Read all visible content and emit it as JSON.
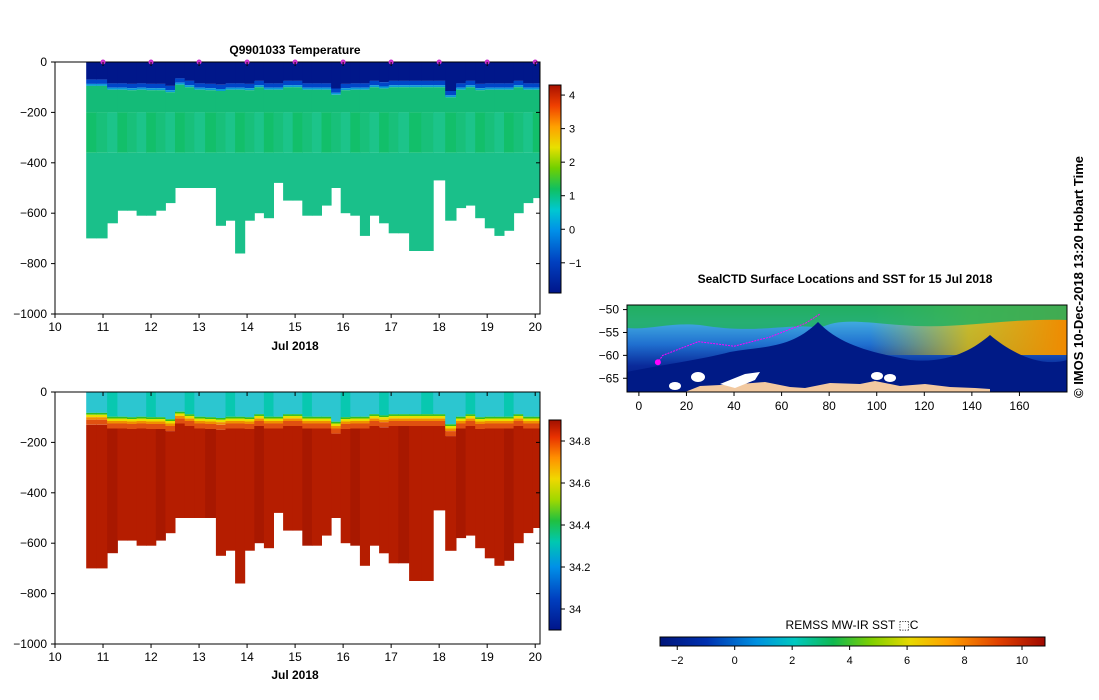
{
  "credit": "©  IMOS 10-Dec-2018 13:20 Hobart Time",
  "temperature_panel": {
    "title": "Q9901033  Temperature",
    "xlabel": "Jul 2018",
    "x_ticks": [
      "10",
      "11",
      "12",
      "13",
      "14",
      "15",
      "16",
      "17",
      "18",
      "19",
      "20"
    ],
    "y_ticks": [
      "0",
      "−200",
      "−400",
      "−600",
      "−800",
      "−1000"
    ],
    "colorbar_ticks": [
      "4",
      "3",
      "2",
      "1",
      "0",
      "−1"
    ]
  },
  "salinity_panel": {
    "title": "",
    "xlabel": "Jul 2018",
    "x_ticks": [
      "10",
      "11",
      "12",
      "13",
      "14",
      "15",
      "16",
      "17",
      "18",
      "19",
      "20"
    ],
    "y_ticks": [
      "0",
      "−200",
      "−400",
      "−600",
      "−800",
      "−1000"
    ],
    "colorbar_ticks": [
      "34.8",
      "34.6",
      "34.4",
      "34.2",
      "34"
    ]
  },
  "map_panel": {
    "title": "SealCTD Surface Locations and SST for 15 Jul 2018",
    "x_ticks": [
      "0",
      "20",
      "40",
      "60",
      "80",
      "100",
      "120",
      "140",
      "160"
    ],
    "y_ticks": [
      "−50",
      "−55",
      "−60",
      "−65"
    ],
    "colorbar_label": "REMSS MW-IR SST ⬚C",
    "colorbar_ticks": [
      "−2",
      "0",
      "2",
      "4",
      "6",
      "8",
      "10"
    ]
  },
  "colors": {
    "deep_blue": "#00208a",
    "green": "#18bf78",
    "red": "#b51d00",
    "land": "#f2c9a0",
    "track": "#ff00ff"
  },
  "chart_data": [
    {
      "type": "heatmap",
      "title": "Q9901033  Temperature",
      "xlabel": "Jul 2018",
      "ylabel": "",
      "xlim": [
        10,
        20.1
      ],
      "ylim": [
        -1000,
        0
      ],
      "colorbar_range": [
        -1.9,
        4.3
      ],
      "profile_times": [
        10.75,
        10.97,
        11.2,
        11.4,
        11.6,
        11.8,
        12.0,
        12.2,
        12.4,
        12.6,
        12.8,
        13.0,
        13.25,
        13.45,
        13.65,
        13.85,
        14.05,
        14.25,
        14.45,
        14.65,
        14.85,
        15.05,
        15.25,
        15.45,
        15.65,
        15.85,
        16.05,
        16.25,
        16.45,
        16.65,
        16.85,
        17.05,
        17.25,
        17.5,
        17.75,
        18.0,
        18.25,
        18.45,
        18.65,
        18.85,
        19.05,
        19.25,
        19.45,
        19.65,
        19.85,
        20.05
      ],
      "max_depth": [
        700,
        700,
        640,
        590,
        590,
        610,
        610,
        590,
        560,
        500,
        500,
        500,
        500,
        650,
        630,
        760,
        630,
        600,
        620,
        480,
        550,
        550,
        610,
        610,
        570,
        500,
        600,
        610,
        690,
        610,
        640,
        680,
        680,
        750,
        750,
        470,
        630,
        580,
        570,
        620,
        660,
        690,
        670,
        600,
        560,
        540
      ],
      "surface_layer_depth": [
        95,
        95,
        110,
        110,
        112,
        110,
        112,
        112,
        120,
        90,
        100,
        110,
        112,
        115,
        110,
        110,
        112,
        100,
        110,
        110,
        100,
        100,
        110,
        110,
        110,
        130,
        112,
        110,
        110,
        100,
        105,
        100,
        100,
        100,
        100,
        100,
        140,
        110,
        100,
        112,
        110,
        110,
        110,
        100,
        110,
        110
      ],
      "surface_temperature": -1.8,
      "deep_temperature": 0.85
    },
    {
      "type": "heatmap",
      "title": "",
      "xlabel": "Jul 2018",
      "ylabel": "",
      "xlim": [
        10,
        20.1
      ],
      "ylim": [
        -1000,
        0
      ],
      "colorbar_range": [
        33.9,
        34.9
      ],
      "profile_times": [
        10.75,
        10.97,
        11.2,
        11.4,
        11.6,
        11.8,
        12.0,
        12.2,
        12.4,
        12.6,
        12.8,
        13.0,
        13.25,
        13.45,
        13.65,
        13.85,
        14.05,
        14.25,
        14.45,
        14.65,
        14.85,
        15.05,
        15.25,
        15.45,
        15.65,
        15.85,
        16.05,
        16.25,
        16.45,
        16.65,
        16.85,
        17.05,
        17.25,
        17.5,
        17.75,
        18.0,
        18.25,
        18.45,
        18.65,
        18.85,
        19.05,
        19.25,
        19.45,
        19.65,
        19.85,
        20.05
      ],
      "max_depth": [
        700,
        700,
        640,
        590,
        590,
        610,
        610,
        590,
        560,
        500,
        500,
        500,
        500,
        650,
        630,
        760,
        630,
        600,
        620,
        480,
        550,
        550,
        610,
        610,
        570,
        500,
        600,
        610,
        690,
        610,
        640,
        680,
        680,
        750,
        750,
        470,
        630,
        580,
        570,
        620,
        660,
        690,
        670,
        600,
        560,
        540
      ],
      "surface_layer_depth": [
        95,
        95,
        110,
        110,
        112,
        110,
        112,
        112,
        120,
        90,
        100,
        110,
        112,
        115,
        110,
        110,
        112,
        100,
        110,
        110,
        100,
        100,
        110,
        110,
        110,
        130,
        112,
        110,
        110,
        100,
        105,
        100,
        100,
        100,
        100,
        100,
        140,
        110,
        100,
        112,
        110,
        110,
        110,
        100,
        110,
        110
      ],
      "surface_salinity": 34.17,
      "deep_salinity": 34.86
    },
    {
      "type": "heatmap",
      "title": "SealCTD Surface Locations and SST for 15 Jul 2018",
      "xlabel": "",
      "ylabel": "",
      "xlim": [
        -5,
        180
      ],
      "ylim": [
        -68,
        -49
      ],
      "colorbar_range": [
        -2.6,
        10.8
      ],
      "track_lon": [
        76,
        70,
        55,
        40,
        25,
        15,
        10,
        8
      ],
      "track_lat": [
        -51,
        -53,
        -56,
        -58,
        -57,
        -59,
        -60,
        -61.5
      ]
    }
  ]
}
